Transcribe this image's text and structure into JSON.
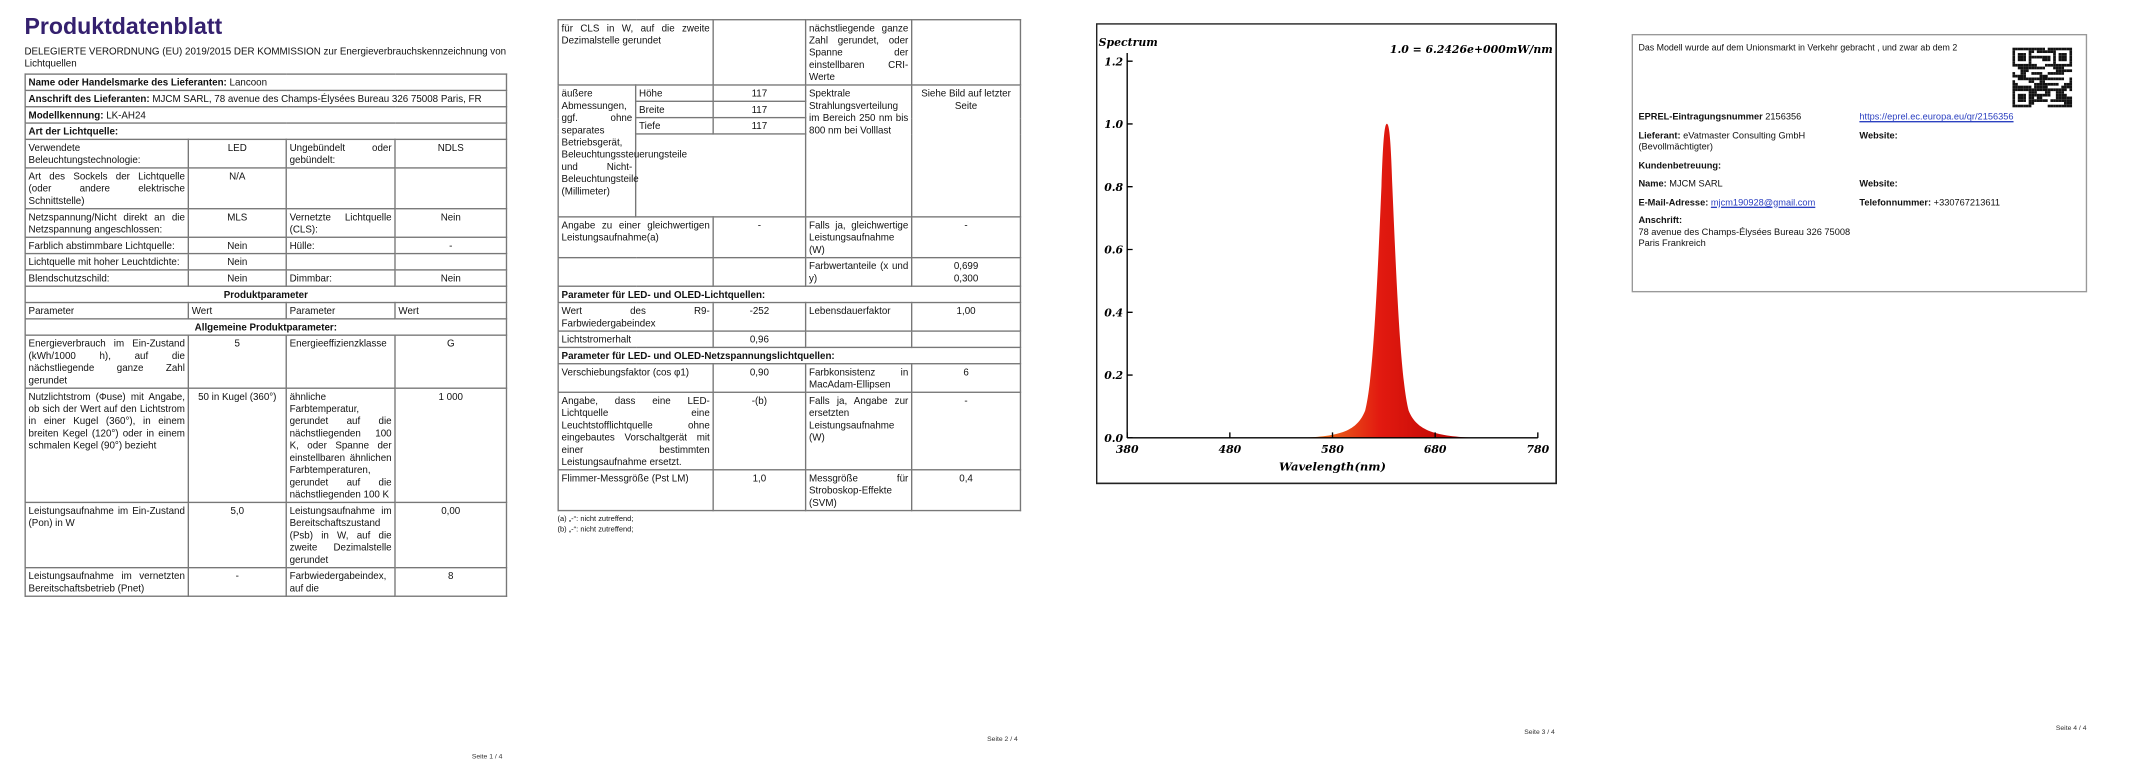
{
  "page1": {
    "title": "Produktdatenblatt",
    "regulation": "DELEGIERTE VERORDNUNG (EU) 2019/2015 DER KOMMISSION zur Energieverbrauchskennzeichnung von Lichtquellen",
    "supplier_fields": [
      {
        "label": "Name oder Handelsmarke des Lieferanten:",
        "value": "Lancoon"
      },
      {
        "label": "Anschrift des Lieferanten:",
        "value": "MJCM SARL, 78 avenue des Champs-Élysées Bureau 326 75008 Paris, FR"
      },
      {
        "label": "Modellkennung:",
        "value": "LK-AH24"
      }
    ],
    "light_source_heading": "Art der Lichtquelle:",
    "light_source_rows": [
      [
        "Verwendete Beleuchtungstechnologie:",
        "LED",
        "Ungebündelt oder gebündelt:",
        "NDLS"
      ],
      [
        "Art des Sockels der Lichtquelle (oder andere elektrische Schnittstelle)",
        "N/A",
        null,
        null
      ],
      [
        "Netzspannung/Nicht direkt an die Netzspannung angeschlossen:",
        "MLS",
        "Vernetzte Lichtquelle (CLS):",
        "Nein"
      ],
      [
        "Farblich abstimmbare Lichtquelle:",
        "Nein",
        "Hülle:",
        "-"
      ],
      [
        "Lichtquelle mit hoher Leuchtdichte:",
        "Nein",
        null,
        null
      ],
      [
        "Blendschutzschild:",
        "Nein",
        "Dimmbar:",
        "Nein"
      ]
    ],
    "product_params_heading": "Produktparameter",
    "column_headers": [
      "Parameter",
      "Wert",
      "Parameter",
      "Wert"
    ],
    "general_heading": "Allgemeine Produktparameter:",
    "general_rows": [
      [
        "Energieverbrauch im Ein-Zustand (kWh/1000 h), auf die nächstliegende ganze Zahl gerundet",
        "5",
        "Energieeffizienzklasse",
        "G"
      ],
      [
        "Nutzlichtstrom (Φuse) mit Angabe, ob sich der Wert auf den Lichtstrom in einer Kugel (360°), in einem breiten Kegel (120°) oder in einem schmalen Kegel (90°) bezieht",
        "50 in Kugel (360°)",
        "ähnliche Farbtemperatur, gerundet auf die nächstliegenden 100 K, oder Spanne der einstellbaren ähnlichen Farbtemperaturen, gerundet auf die nächstliegenden 100 K",
        "1 000"
      ],
      [
        "Leistungsaufnahme im Ein-Zustand (Pon) in W",
        "5,0",
        "Leistungsaufnahme im Bereitschaftszustand (Psb) in W, auf die zweite Dezimalstelle gerundet",
        "0,00"
      ],
      [
        "Leistungsaufnahme im vernetzten Bereitschaftsbetrieb (Pnet)",
        "-",
        "Farbwiedergabeindex, auf die",
        "8"
      ]
    ],
    "footer": "Seite 1 / 4"
  },
  "page2": {
    "first_row": [
      "für CLS in W, auf die zweite Dezimalstelle gerundet",
      null,
      "nächstliegende ganze Zahl gerundet, oder Spanne der einstellbaren CRI-Werte",
      null
    ],
    "dimensions": {
      "label": "äußere Abmessungen, ggf. ohne separates Betriebsgerät, Beleuchtungssteuerungsteile und Nicht-Beleuchtungsteile (Millimeter)",
      "items": [
        [
          "Höhe",
          "117"
        ],
        [
          "Breite",
          "117"
        ],
        [
          "Tiefe",
          "117"
        ]
      ],
      "parameter": "Spektrale Strahlungsverteilung im Bereich 250 nm bis 800 nm bei Volllast",
      "value": "Siehe Bild auf letzter Seite"
    },
    "sections": [
      {
        "rows": [
          [
            "Angabe zu einer gleichwertigen Leistungsaufnahme(a)",
            "-",
            "Falls ja, gleichwertige Leistungsaufnahme (W)",
            "-"
          ],
          [
            null,
            null,
            "Farbwertanteile (x und y)",
            "0,699\n0,300"
          ]
        ]
      },
      {
        "heading": "Parameter für LED- und OLED-Lichtquellen:",
        "rows": [
          [
            "Wert des R9-Farbwiedergabeindex",
            "-252",
            "Lebensdauerfaktor",
            "1,00"
          ],
          [
            "Lichtstromerhalt",
            "0,96",
            null,
            null
          ]
        ]
      },
      {
        "heading": "Parameter für LED- und OLED-Netzspannungslichtquellen:",
        "rows": [
          [
            "Verschiebungsfaktor (cos φ1)",
            "0,90",
            "Farbkonsistenz in MacAdam-Ellipsen",
            "6"
          ],
          [
            "Angabe, dass eine LED-Lichtquelle eine Leuchtstofflichtquelle ohne eingebautes Vorschaltgerät mit einer bestimmten Leistungsaufnahme ersetzt.",
            "-(b)",
            "Falls ja, Angabe zur ersetzten Leistungsaufnahme (W)",
            "-"
          ],
          [
            "Flimmer-Messgröße (Pst LM)",
            "1,0",
            "Messgröße für Stroboskop-Effekte (SVM)",
            "0,4"
          ]
        ]
      }
    ],
    "footnotes": [
      "(a) „-“: nicht zutreffend;",
      "(b) „-“: nicht zutreffend;"
    ],
    "footer": "Seite 2 / 4"
  },
  "page3": {
    "spectrum": {
      "title": "Spectrum",
      "annotation": "1.0 = 6.2426e+000mW/nm",
      "xlabel": "Wavelength(nm)",
      "xlim": [
        380,
        780
      ],
      "xticks": [
        380,
        480,
        580,
        680,
        780
      ],
      "ylim": [
        0,
        1.2
      ],
      "yticks": [
        {
          "value": 0,
          "label": "0.0"
        },
        {
          "value": 0.2,
          "label": "0.2"
        },
        {
          "value": 0.4,
          "label": "0.4"
        },
        {
          "value": 0.6,
          "label": "0.6"
        },
        {
          "value": 0.8,
          "label": "0.8"
        },
        {
          "value": 1,
          "label": "1.0"
        },
        {
          "value": 1.2,
          "label": "1.2"
        }
      ]
    },
    "footer": "Seite 3 / 4"
  },
  "page4": {
    "intro": "Das Modell wurde auf dem Unionsmarkt in Verkehr gebracht , und zwar ab dem 2",
    "rows": [
      [
        {
          "label": "EPREL-Eintragungsnummer",
          "value": "2156356"
        },
        {
          "value": "https://eprel.ec.europa.eu/qr/2156356"
        }
      ],
      [
        {
          "label": "Lieferant:",
          "value": "eVatmaster Consulting GmbH (Bevollmächtigter)"
        },
        {
          "label": "Website:"
        }
      ],
      [
        {
          "label": "Kundenbetreuung:"
        },
        null
      ],
      [
        {
          "label": "Name:",
          "value": "MJCM SARL"
        },
        {
          "label": "Website:"
        }
      ],
      [
        {
          "label": "E-Mail-Adresse:",
          "value": "mjcm190928@gmail.com"
        },
        {
          "label": "Telefonnummer:",
          "value": "+330767213611"
        }
      ],
      [
        {
          "label": "Anschrift:",
          "value": "78 avenue des Champs-Élysées Bureau 326 75008 Paris Frankreich"
        },
        null
      ]
    ],
    "footer": "Seite 4 / 4"
  }
}
